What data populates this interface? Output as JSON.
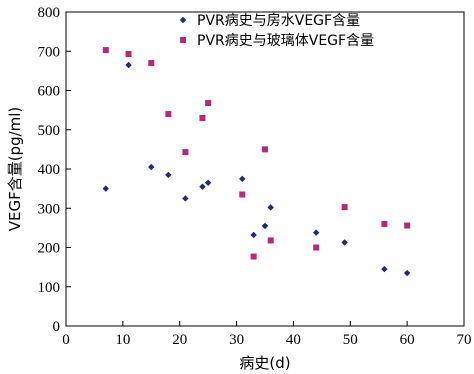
{
  "chart_data": {
    "type": "scatter",
    "title": "",
    "xlabel": "病史(d)",
    "ylabel": "VEGF含量(pg/ml)",
    "xlim": [
      0,
      70
    ],
    "ylim": [
      0,
      800
    ],
    "xticks": [
      0,
      10,
      20,
      30,
      40,
      50,
      60,
      70
    ],
    "yticks": [
      0,
      100,
      200,
      300,
      400,
      500,
      600,
      700,
      800
    ],
    "grid": false,
    "legend_position": "top-right",
    "series": [
      {
        "name": "PVR病史与房水VEGF含量",
        "marker": "diamond",
        "color": "#1f2a7a",
        "points": [
          [
            7,
            350
          ],
          [
            11,
            665
          ],
          [
            15,
            405
          ],
          [
            18,
            385
          ],
          [
            21,
            325
          ],
          [
            24,
            355
          ],
          [
            25,
            365
          ],
          [
            31,
            375
          ],
          [
            33,
            232
          ],
          [
            35,
            255
          ],
          [
            36,
            302
          ],
          [
            44,
            238
          ],
          [
            49,
            213
          ],
          [
            56,
            145
          ],
          [
            60,
            135
          ]
        ]
      },
      {
        "name": "PVR病史与玻璃体VEGF含量",
        "marker": "square",
        "color": "#b5287a",
        "points": [
          [
            7,
            703
          ],
          [
            11,
            693
          ],
          [
            15,
            670
          ],
          [
            18,
            540
          ],
          [
            21,
            443
          ],
          [
            24,
            530
          ],
          [
            25,
            568
          ],
          [
            31,
            335
          ],
          [
            33,
            177
          ],
          [
            35,
            450
          ],
          [
            36,
            218
          ],
          [
            44,
            200
          ],
          [
            49,
            303
          ],
          [
            56,
            260
          ],
          [
            60,
            256
          ]
        ]
      }
    ]
  }
}
